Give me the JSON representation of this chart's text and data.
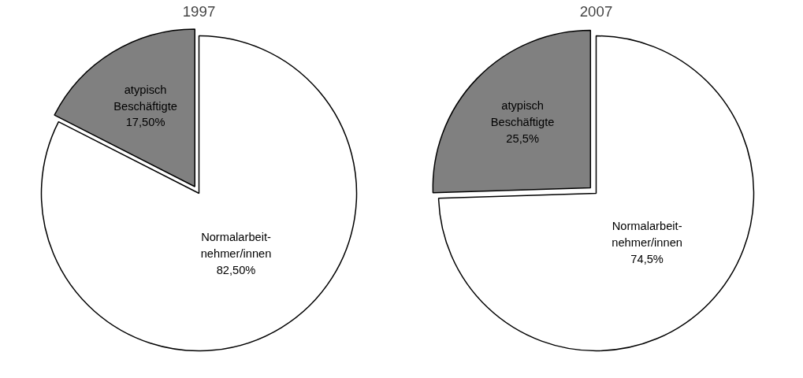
{
  "chart_data": [
    {
      "type": "pie",
      "title": "1997",
      "categories": [
        "Normalarbeit-\nnehmer/innen",
        "atypisch\nBeschäftigte"
      ],
      "values": [
        82.5,
        17.5
      ],
      "colors": [
        "#ffffff",
        "#808080"
      ],
      "value_labels": [
        "82,50%",
        "17,50%"
      ]
    },
    {
      "type": "pie",
      "title": "2007",
      "categories": [
        "Normalarbeit-\nnehmer/innen",
        "atypisch\nBeschäftigte"
      ],
      "values": [
        74.5,
        25.5
      ],
      "colors": [
        "#ffffff",
        "#808080"
      ],
      "value_labels": [
        "74,5%",
        "25,5%"
      ]
    }
  ]
}
